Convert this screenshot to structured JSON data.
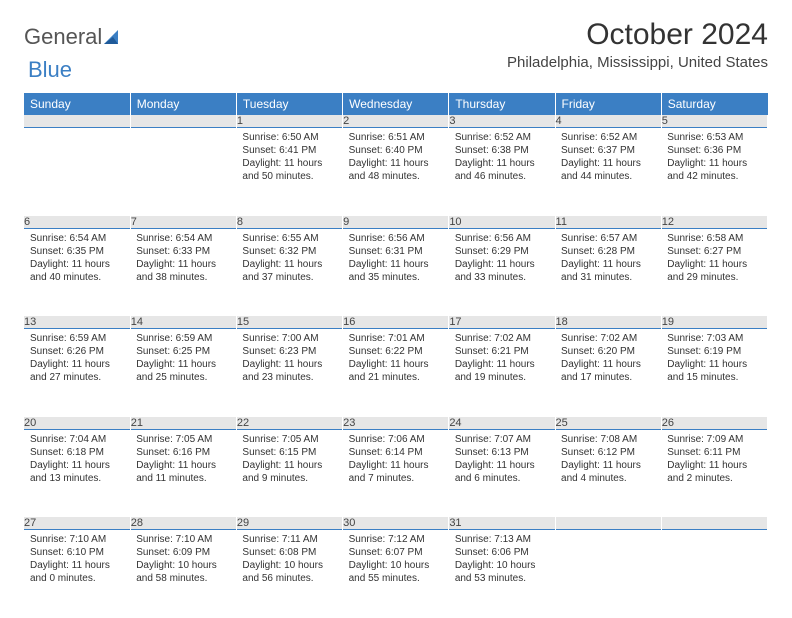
{
  "brand": {
    "part1": "General",
    "part2": "Blue"
  },
  "title": "October 2024",
  "location": "Philadelphia, Mississippi, United States",
  "colors": {
    "header_bg": "#3b7fc4",
    "header_text": "#ffffff",
    "daynum_bg": "#e6e6e6",
    "row_border": "#3b7fc4",
    "body_text": "#333333"
  },
  "day_headers": [
    "Sunday",
    "Monday",
    "Tuesday",
    "Wednesday",
    "Thursday",
    "Friday",
    "Saturday"
  ],
  "weeks": [
    [
      {
        "n": "",
        "sr": "",
        "ss": "",
        "dl": ""
      },
      {
        "n": "",
        "sr": "",
        "ss": "",
        "dl": ""
      },
      {
        "n": "1",
        "sr": "Sunrise: 6:50 AM",
        "ss": "Sunset: 6:41 PM",
        "dl": "Daylight: 11 hours and 50 minutes."
      },
      {
        "n": "2",
        "sr": "Sunrise: 6:51 AM",
        "ss": "Sunset: 6:40 PM",
        "dl": "Daylight: 11 hours and 48 minutes."
      },
      {
        "n": "3",
        "sr": "Sunrise: 6:52 AM",
        "ss": "Sunset: 6:38 PM",
        "dl": "Daylight: 11 hours and 46 minutes."
      },
      {
        "n": "4",
        "sr": "Sunrise: 6:52 AM",
        "ss": "Sunset: 6:37 PM",
        "dl": "Daylight: 11 hours and 44 minutes."
      },
      {
        "n": "5",
        "sr": "Sunrise: 6:53 AM",
        "ss": "Sunset: 6:36 PM",
        "dl": "Daylight: 11 hours and 42 minutes."
      }
    ],
    [
      {
        "n": "6",
        "sr": "Sunrise: 6:54 AM",
        "ss": "Sunset: 6:35 PM",
        "dl": "Daylight: 11 hours and 40 minutes."
      },
      {
        "n": "7",
        "sr": "Sunrise: 6:54 AM",
        "ss": "Sunset: 6:33 PM",
        "dl": "Daylight: 11 hours and 38 minutes."
      },
      {
        "n": "8",
        "sr": "Sunrise: 6:55 AM",
        "ss": "Sunset: 6:32 PM",
        "dl": "Daylight: 11 hours and 37 minutes."
      },
      {
        "n": "9",
        "sr": "Sunrise: 6:56 AM",
        "ss": "Sunset: 6:31 PM",
        "dl": "Daylight: 11 hours and 35 minutes."
      },
      {
        "n": "10",
        "sr": "Sunrise: 6:56 AM",
        "ss": "Sunset: 6:29 PM",
        "dl": "Daylight: 11 hours and 33 minutes."
      },
      {
        "n": "11",
        "sr": "Sunrise: 6:57 AM",
        "ss": "Sunset: 6:28 PM",
        "dl": "Daylight: 11 hours and 31 minutes."
      },
      {
        "n": "12",
        "sr": "Sunrise: 6:58 AM",
        "ss": "Sunset: 6:27 PM",
        "dl": "Daylight: 11 hours and 29 minutes."
      }
    ],
    [
      {
        "n": "13",
        "sr": "Sunrise: 6:59 AM",
        "ss": "Sunset: 6:26 PM",
        "dl": "Daylight: 11 hours and 27 minutes."
      },
      {
        "n": "14",
        "sr": "Sunrise: 6:59 AM",
        "ss": "Sunset: 6:25 PM",
        "dl": "Daylight: 11 hours and 25 minutes."
      },
      {
        "n": "15",
        "sr": "Sunrise: 7:00 AM",
        "ss": "Sunset: 6:23 PM",
        "dl": "Daylight: 11 hours and 23 minutes."
      },
      {
        "n": "16",
        "sr": "Sunrise: 7:01 AM",
        "ss": "Sunset: 6:22 PM",
        "dl": "Daylight: 11 hours and 21 minutes."
      },
      {
        "n": "17",
        "sr": "Sunrise: 7:02 AM",
        "ss": "Sunset: 6:21 PM",
        "dl": "Daylight: 11 hours and 19 minutes."
      },
      {
        "n": "18",
        "sr": "Sunrise: 7:02 AM",
        "ss": "Sunset: 6:20 PM",
        "dl": "Daylight: 11 hours and 17 minutes."
      },
      {
        "n": "19",
        "sr": "Sunrise: 7:03 AM",
        "ss": "Sunset: 6:19 PM",
        "dl": "Daylight: 11 hours and 15 minutes."
      }
    ],
    [
      {
        "n": "20",
        "sr": "Sunrise: 7:04 AM",
        "ss": "Sunset: 6:18 PM",
        "dl": "Daylight: 11 hours and 13 minutes."
      },
      {
        "n": "21",
        "sr": "Sunrise: 7:05 AM",
        "ss": "Sunset: 6:16 PM",
        "dl": "Daylight: 11 hours and 11 minutes."
      },
      {
        "n": "22",
        "sr": "Sunrise: 7:05 AM",
        "ss": "Sunset: 6:15 PM",
        "dl": "Daylight: 11 hours and 9 minutes."
      },
      {
        "n": "23",
        "sr": "Sunrise: 7:06 AM",
        "ss": "Sunset: 6:14 PM",
        "dl": "Daylight: 11 hours and 7 minutes."
      },
      {
        "n": "24",
        "sr": "Sunrise: 7:07 AM",
        "ss": "Sunset: 6:13 PM",
        "dl": "Daylight: 11 hours and 6 minutes."
      },
      {
        "n": "25",
        "sr": "Sunrise: 7:08 AM",
        "ss": "Sunset: 6:12 PM",
        "dl": "Daylight: 11 hours and 4 minutes."
      },
      {
        "n": "26",
        "sr": "Sunrise: 7:09 AM",
        "ss": "Sunset: 6:11 PM",
        "dl": "Daylight: 11 hours and 2 minutes."
      }
    ],
    [
      {
        "n": "27",
        "sr": "Sunrise: 7:10 AM",
        "ss": "Sunset: 6:10 PM",
        "dl": "Daylight: 11 hours and 0 minutes."
      },
      {
        "n": "28",
        "sr": "Sunrise: 7:10 AM",
        "ss": "Sunset: 6:09 PM",
        "dl": "Daylight: 10 hours and 58 minutes."
      },
      {
        "n": "29",
        "sr": "Sunrise: 7:11 AM",
        "ss": "Sunset: 6:08 PM",
        "dl": "Daylight: 10 hours and 56 minutes."
      },
      {
        "n": "30",
        "sr": "Sunrise: 7:12 AM",
        "ss": "Sunset: 6:07 PM",
        "dl": "Daylight: 10 hours and 55 minutes."
      },
      {
        "n": "31",
        "sr": "Sunrise: 7:13 AM",
        "ss": "Sunset: 6:06 PM",
        "dl": "Daylight: 10 hours and 53 minutes."
      },
      {
        "n": "",
        "sr": "",
        "ss": "",
        "dl": ""
      },
      {
        "n": "",
        "sr": "",
        "ss": "",
        "dl": ""
      }
    ]
  ]
}
